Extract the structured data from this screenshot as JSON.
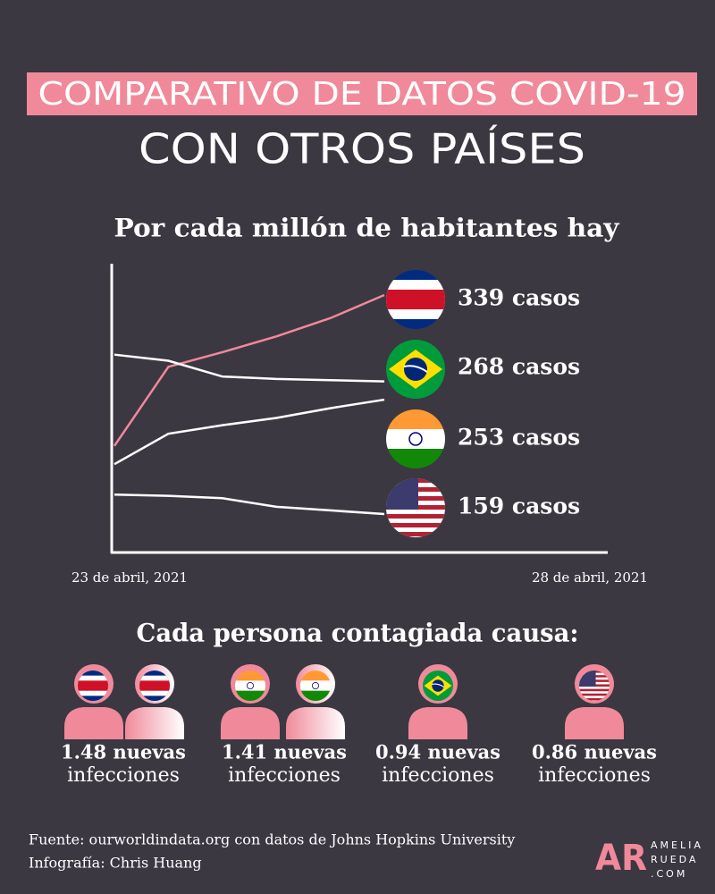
{
  "header": {
    "title": "COMPARATIVO DE DATOS COVID-19",
    "subtitle": "CON OTROS PAÍSES"
  },
  "chart_data": {
    "type": "line",
    "title": "Por cada millón de habitantes hay",
    "categories": [
      "23 de abril, 2021",
      null,
      null,
      null,
      null,
      "28 de abril, 2021"
    ],
    "series": [
      {
        "color": "#f0899a",
        "values": [
          215,
          280,
          292,
          305,
          320,
          339
        ],
        "value_labels": [
          null,
          null,
          null,
          null,
          null,
          "339 casos"
        ]
      },
      {
        "color": "#ffffff",
        "values": [
          290,
          285,
          272,
          270,
          269,
          268
        ],
        "value_labels": [
          null,
          null,
          null,
          null,
          null,
          "268 casos"
        ]
      },
      {
        "color": "#ffffff",
        "values": [
          200,
          225,
          232,
          238,
          246,
          253
        ],
        "value_labels": [
          null,
          null,
          null,
          null,
          null,
          "253 casos"
        ]
      },
      {
        "color": "#ffffff",
        "values": [
          175,
          174,
          172,
          165,
          162,
          159
        ],
        "value_labels": [
          null,
          null,
          null,
          null,
          null,
          "159 casos"
        ]
      }
    ]
  },
  "infections": {
    "title": "Cada persona contagiada causa:",
    "items": [
      {
        "line1": "1.48 nuevas",
        "line2": "infecciones"
      },
      {
        "line1": "1.41 nuevas",
        "line2": "infecciones"
      },
      {
        "line1": "0.94 nuevas",
        "line2": "infecciones"
      },
      {
        "line1": "0.86 nuevas",
        "line2": "infecciones"
      }
    ]
  },
  "footer": {
    "source": "Fuente: ourworldindata.org con datos de Johns Hopkins University",
    "credit": "Infografía: Chris Huang",
    "logo": {
      "mark": "AR",
      "line1": "AMELIA",
      "line2": "RUEDA",
      "line3": ".COM"
    }
  }
}
